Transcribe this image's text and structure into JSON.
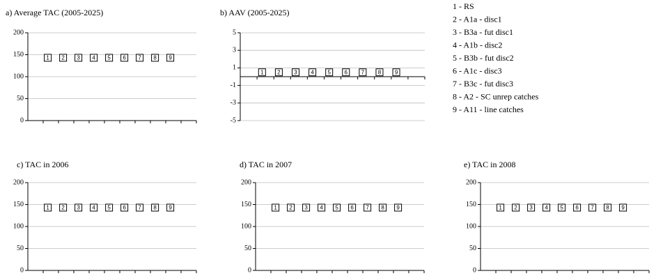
{
  "chart_data": [
    {
      "type": "scatter",
      "title": "a) Average TAC (2005-2025)",
      "categories": [
        "1",
        "2",
        "3",
        "4",
        "5",
        "6",
        "7",
        "8",
        "9"
      ],
      "values": [
        143,
        143,
        143,
        143,
        143,
        143,
        143,
        143,
        143
      ],
      "ylim": [
        0,
        200
      ],
      "yticks": [
        0,
        50,
        100,
        150,
        200
      ],
      "grid": true
    },
    {
      "type": "scatter",
      "title": "b) AAV (2005-2025)",
      "categories": [
        "1",
        "2",
        "3",
        "4",
        "5",
        "6",
        "7",
        "8",
        "9"
      ],
      "values": [
        0.5,
        0.5,
        0.5,
        0.5,
        0.5,
        0.5,
        0.5,
        0.5,
        0.5
      ],
      "ylim": [
        -5,
        5
      ],
      "yticks": [
        -5,
        -3,
        -1,
        1,
        3,
        5
      ],
      "grid": true
    },
    {
      "type": "scatter",
      "title": "c) TAC in 2006",
      "categories": [
        "1",
        "2",
        "3",
        "4",
        "5",
        "6",
        "7",
        "8",
        "9"
      ],
      "values": [
        143,
        143,
        143,
        143,
        143,
        143,
        143,
        143,
        143
      ],
      "ylim": [
        0,
        200
      ],
      "yticks": [
        0,
        50,
        100,
        150,
        200
      ],
      "grid": true
    },
    {
      "type": "scatter",
      "title": "d) TAC in 2007",
      "categories": [
        "1",
        "2",
        "3",
        "4",
        "5",
        "6",
        "7",
        "8",
        "9"
      ],
      "values": [
        143,
        143,
        143,
        143,
        143,
        143,
        143,
        143,
        143
      ],
      "ylim": [
        0,
        200
      ],
      "yticks": [
        0,
        50,
        100,
        150,
        200
      ],
      "grid": true
    },
    {
      "type": "scatter",
      "title": "e) TAC in 2008",
      "categories": [
        "1",
        "2",
        "3",
        "4",
        "5",
        "6",
        "7",
        "8",
        "9"
      ],
      "values": [
        143,
        143,
        143,
        143,
        143,
        143,
        143,
        143,
        143
      ],
      "ylim": [
        0,
        200
      ],
      "yticks": [
        0,
        50,
        100,
        150,
        200
      ],
      "grid": true
    }
  ],
  "legend": [
    "1 - RS",
    "2 - A1a - disc1",
    "3 - B3a - fut disc1",
    "4 - A1b - disc2",
    "5 - B3b - fut disc2",
    "6 - A1c - disc3",
    "7 - B3c - fut disc3",
    "8 - A2 - SC unrep catches",
    "9 - A11 - line catches"
  ]
}
